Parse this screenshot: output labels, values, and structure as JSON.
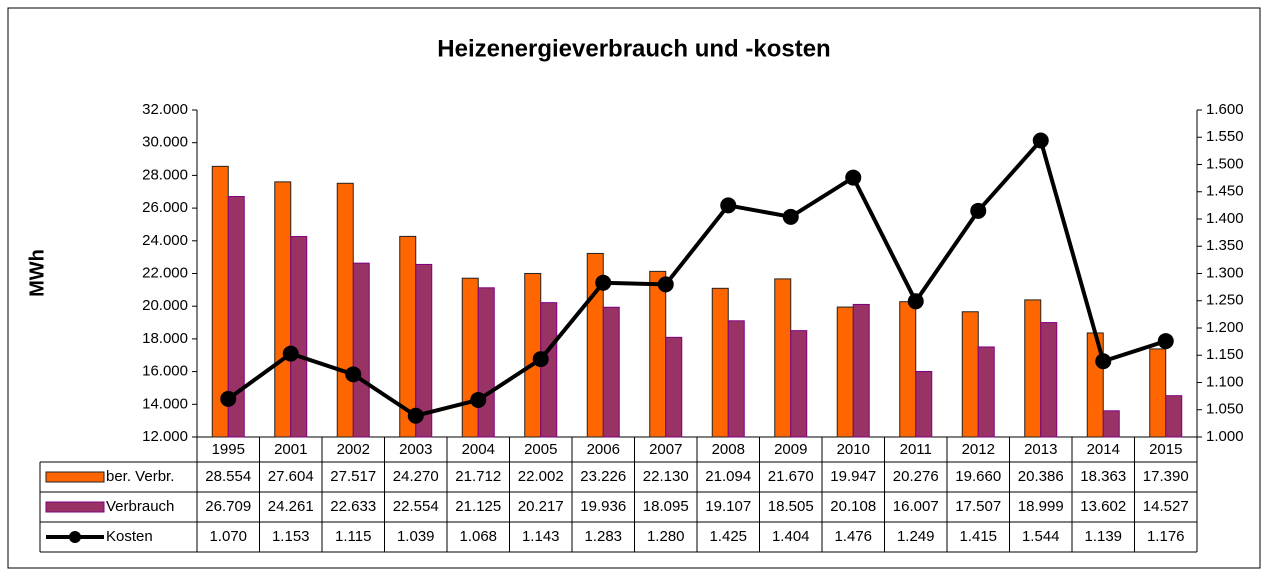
{
  "chart_data": {
    "type": "bar",
    "title": "Heizenergieverbrauch und -kosten",
    "ylabel": "MWh",
    "categories": [
      "1995",
      "2001",
      "2002",
      "2003",
      "2004",
      "2005",
      "2006",
      "2007",
      "2008",
      "2009",
      "2010",
      "2011",
      "2012",
      "2013",
      "2014",
      "2015"
    ],
    "series": [
      {
        "name": "ber. Verbr.",
        "color": "#ff6600",
        "type": "bar",
        "values": [
          28554,
          27604,
          27517,
          24270,
          21712,
          22002,
          23226,
          22130,
          21094,
          21670,
          19947,
          20276,
          19660,
          20386,
          18363,
          17390
        ],
        "value_labels": [
          "28.554",
          "27.604",
          "27.517",
          "24.270",
          "21.712",
          "22.002",
          "23.226",
          "22.130",
          "21.094",
          "21.670",
          "19.947",
          "20.276",
          "19.660",
          "20.386",
          "18.363",
          "17.390"
        ]
      },
      {
        "name": "Verbrauch",
        "color": "#993366",
        "type": "bar",
        "values": [
          26709,
          24261,
          22633,
          22554,
          21125,
          20217,
          19936,
          18095,
          19107,
          18505,
          20108,
          16007,
          17507,
          18999,
          13602,
          14527
        ],
        "value_labels": [
          "26.709",
          "24.261",
          "22.633",
          "22.554",
          "21.125",
          "20.217",
          "19.936",
          "18.095",
          "19.107",
          "18.505",
          "20.108",
          "16.007",
          "17.507",
          "18.999",
          "13.602",
          "14.527"
        ]
      },
      {
        "name": "Kosten",
        "color": "#000000",
        "type": "line",
        "axis": "y2",
        "values": [
          1070,
          1153,
          1115,
          1039,
          1068,
          1143,
          1283,
          1280,
          1425,
          1404,
          1476,
          1249,
          1415,
          1544,
          1139,
          1176
        ],
        "value_labels": [
          "1.070",
          "1.153",
          "1.115",
          "1.039",
          "1.068",
          "1.143",
          "1.283",
          "1.280",
          "1.425",
          "1.404",
          "1.476",
          "1.249",
          "1.415",
          "1.544",
          "1.139",
          "1.176"
        ]
      }
    ],
    "ylim": [
      12000,
      32000
    ],
    "yticks": [
      {
        "value": 12000,
        "label": "12.000"
      },
      {
        "value": 14000,
        "label": "14.000"
      },
      {
        "value": 16000,
        "label": "16.000"
      },
      {
        "value": 18000,
        "label": "18.000"
      },
      {
        "value": 20000,
        "label": "20.000"
      },
      {
        "value": 22000,
        "label": "22.000"
      },
      {
        "value": 24000,
        "label": "24.000"
      },
      {
        "value": 26000,
        "label": "26.000"
      },
      {
        "value": 28000,
        "label": "28.000"
      },
      {
        "value": 30000,
        "label": "30.000"
      },
      {
        "value": 32000,
        "label": "32.000"
      }
    ],
    "y2lim": [
      1000,
      1600
    ],
    "y2ticks": [
      {
        "value": 1000,
        "label": "1.000"
      },
      {
        "value": 1050,
        "label": "1.050"
      },
      {
        "value": 1100,
        "label": "1.100"
      },
      {
        "value": 1150,
        "label": "1.150"
      },
      {
        "value": 1200,
        "label": "1.200"
      },
      {
        "value": 1250,
        "label": "1.250"
      },
      {
        "value": 1300,
        "label": "1.300"
      },
      {
        "value": 1350,
        "label": "1.350"
      },
      {
        "value": 1400,
        "label": "1.400"
      },
      {
        "value": 1450,
        "label": "1.450"
      },
      {
        "value": 1500,
        "label": "1.500"
      },
      {
        "value": 1550,
        "label": "1.550"
      },
      {
        "value": 1600,
        "label": "1.600"
      }
    ],
    "grid": false
  }
}
